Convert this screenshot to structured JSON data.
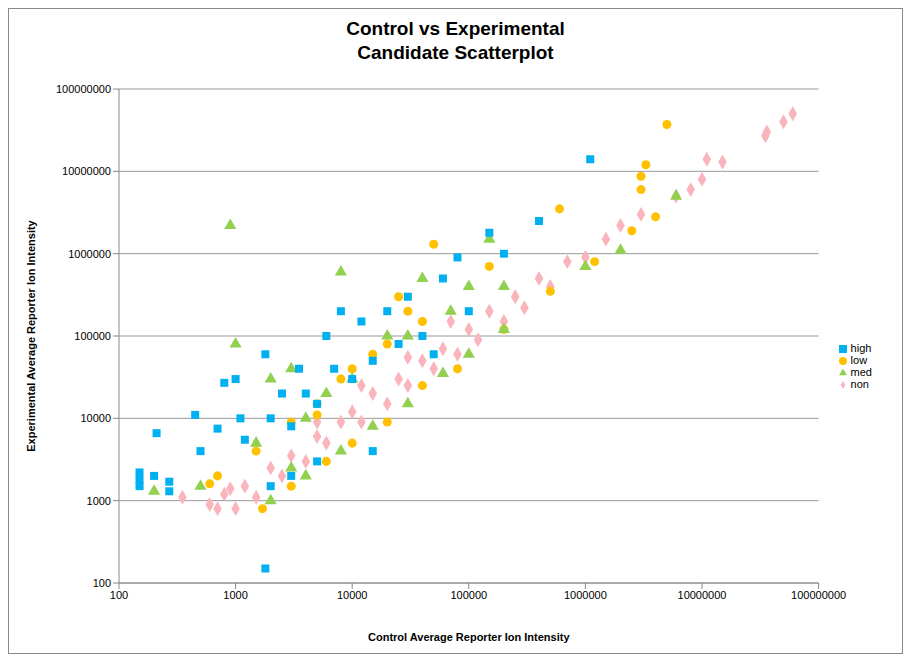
{
  "chart_data": {
    "type": "scatter",
    "title": "Control vs Experimental\nCandidate Scatterplot",
    "x_label": "Control Average Reporter Ion Intensity",
    "y_label": "Experimental Average Reporter Ion Intensity",
    "log": true,
    "grid": "y",
    "legend": "right",
    "xlim": [
      100,
      100000000
    ],
    "ylim": [
      100,
      100000000
    ],
    "xticks": [
      100,
      1000,
      10000,
      100000,
      1000000,
      10000000,
      100000000
    ],
    "yticks": [
      100,
      1000,
      10000,
      100000,
      1000000,
      10000000,
      100000000
    ],
    "series": [
      {
        "name": "non",
        "color": "#f9b4bc",
        "marker": "diamond",
        "x": [
          350,
          600,
          800,
          1000,
          1200,
          1500,
          2000,
          2500,
          3000,
          4000,
          5000,
          6000,
          8000,
          10000,
          12000,
          15000,
          20000,
          25000,
          30000,
          40000,
          50000,
          60000,
          80000,
          100000,
          120000,
          150000,
          200000,
          250000,
          300000,
          400000,
          500000,
          700000,
          1000000,
          1500000,
          2000000,
          3000000,
          6000000,
          8000000,
          10000000,
          11000000,
          15000000,
          35000000,
          36000000,
          50000000,
          60000000,
          5000,
          12000,
          30000,
          70000,
          900,
          700
        ],
        "y": [
          1100,
          900,
          1200,
          800,
          1500,
          1100,
          2500,
          2000,
          3500,
          3000,
          6000,
          5000,
          9000,
          12000,
          9000,
          20000,
          15000,
          30000,
          25000,
          50000,
          40000,
          70000,
          60000,
          120000,
          90000,
          200000,
          150000,
          300000,
          220000,
          500000,
          400000,
          800000,
          900000,
          1500000,
          2200000,
          3000000,
          5000000,
          6000000,
          8000000,
          14000000,
          13000000,
          27000000,
          30000000,
          40000000,
          50000000,
          9000,
          25000,
          55000,
          150000,
          1400,
          800
        ]
      },
      {
        "name": "low",
        "color": "#ffc000",
        "marker": "circle",
        "x": [
          600,
          700,
          1500,
          3000,
          5000,
          8000,
          10000,
          20000,
          25000,
          30000,
          40000,
          50000,
          150000,
          600000,
          3000000,
          3000000,
          3300000,
          5000000,
          2500000,
          4000000,
          1700,
          3000,
          6000,
          10000,
          20000,
          40000,
          80000,
          200000,
          500000,
          1200000,
          15000,
          5000
        ],
        "y": [
          1600,
          2000,
          4000,
          9000,
          15000,
          30000,
          40000,
          80000,
          300000,
          200000,
          150000,
          1300000,
          700000,
          3500000,
          8700000,
          6000000,
          12000000,
          37000000,
          1900000,
          2800000,
          800,
          1500,
          3000,
          5000,
          9000,
          25000,
          40000,
          120000,
          350000,
          800000,
          60000,
          11000
        ]
      },
      {
        "name": "med",
        "color": "#92d050",
        "marker": "triangle",
        "x": [
          200,
          500,
          1000,
          2000,
          3000,
          8000,
          6000,
          10000,
          20000,
          30000,
          40000,
          100000,
          150000,
          200000,
          6000000,
          2000000,
          900,
          1500,
          4000,
          2000,
          4000,
          8000,
          15000,
          30000,
          60000,
          100000,
          200000,
          1000000,
          70000,
          3000
        ],
        "y": [
          1300,
          1500,
          80000,
          30000,
          40000,
          600000,
          20000,
          30000,
          100000,
          100000,
          500000,
          400000,
          1500000,
          400000,
          5000000,
          1100000,
          2200000,
          5000,
          10000,
          1000,
          2000,
          4000,
          8000,
          15000,
          35000,
          60000,
          120000,
          700000,
          200000,
          2500
        ]
      },
      {
        "name": "high",
        "color": "#00b0f0",
        "marker": "square",
        "x": [
          150,
          150,
          150,
          210,
          270,
          270,
          200,
          500,
          450,
          700,
          800,
          1000,
          1100,
          1200,
          1800,
          1800,
          2000,
          2500,
          3000,
          3500,
          4000,
          5000,
          6000,
          7000,
          8000,
          10000,
          12000,
          15000,
          20000,
          25000,
          30000,
          40000,
          50000,
          60000,
          80000,
          100000,
          150000,
          200000,
          400000,
          1100000,
          3000,
          2000,
          15000,
          5000
        ],
        "y": [
          1500,
          2200,
          1800,
          6600,
          1300,
          1700,
          2000,
          4000,
          11000,
          7500,
          27000,
          30000,
          10000,
          5500,
          150,
          60000,
          10000,
          20000,
          8000,
          40000,
          20000,
          15000,
          100000,
          40000,
          200000,
          30000,
          150000,
          50000,
          200000,
          80000,
          300000,
          100000,
          60000,
          500000,
          900000,
          200000,
          1800000,
          1000000,
          2500000,
          14000000,
          2000,
          1500,
          4000,
          3000
        ]
      }
    ]
  }
}
